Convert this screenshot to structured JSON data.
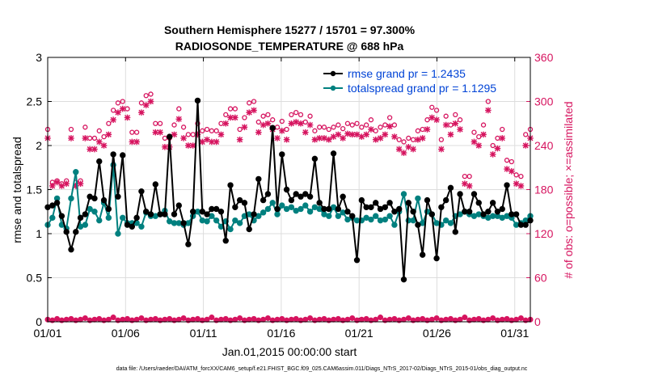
{
  "title_line1": "Southern Hemisphere 15277 / 15701 = 97.300%",
  "title_line2": "RADIOSONDE_TEMPERATURE @ 688 hPa",
  "xlabel": "Jan.01,2015 00:00:00 start",
  "ylabel_left": "rmse and totalspread",
  "ylabel_right": "# of obs: o=possible; ×=assimilated",
  "footer": "data file: /Users/raeder/DAI/ATM_forcXX/CAM6_setup/f.e21.FHIST_BGC.f09_025.CAM6assim.011/Diags_NTrS_2017-02/Diags_NTrS_2015-01/obs_diag_output.nc",
  "colors": {
    "rmse": "#000000",
    "spread": "#00807f",
    "obs": "#d6145f",
    "legend_text": "#0043d6",
    "grid": "#dddddd"
  },
  "chart_data": {
    "type": "line",
    "x_range": [
      1,
      32
    ],
    "x_ticks": [
      1,
      6,
      11,
      16,
      21,
      26,
      31
    ],
    "x_tick_labels": [
      "01/01",
      "01/06",
      "01/11",
      "01/16",
      "01/21",
      "01/26",
      "01/31"
    ],
    "y_left_range": [
      0,
      3
    ],
    "y_left_ticks": [
      "0",
      "0.5",
      "1",
      "1.5",
      "2",
      "2.5",
      "3"
    ],
    "y_right_range": [
      0,
      360
    ],
    "y_right_ticks": [
      "0",
      "60",
      "120",
      "180",
      "240",
      "300",
      "360"
    ],
    "legend": [
      {
        "key": "rmse",
        "label": "rmse grand pr = 1.2435"
      },
      {
        "key": "spread",
        "label": "totalspread grand pr = 1.1295"
      }
    ],
    "series": [
      {
        "name": "rmse",
        "values": [
          1.3,
          1.32,
          1.35,
          1.2,
          1.02,
          0.82,
          1.02,
          1.18,
          1.22,
          1.42,
          1.4,
          1.82,
          1.38,
          1.28,
          1.9,
          1.42,
          1.89,
          1.1,
          1.08,
          1.18,
          1.48,
          1.25,
          1.22,
          1.56,
          1.22,
          1.22,
          2.1,
          1.22,
          1.32,
          1.12,
          0.88,
          1.25,
          2.51,
          1.25,
          1.22,
          1.28,
          1.28,
          1.25,
          0.92,
          1.55,
          1.3,
          1.38,
          1.35,
          1.05,
          1.22,
          1.62,
          1.38,
          1.45,
          2.2,
          1.28,
          1.9,
          1.5,
          1.38,
          1.45,
          1.42,
          1.45,
          1.42,
          1.85,
          1.35,
          1.28,
          1.28,
          1.91,
          1.28,
          1.42,
          1.25,
          1.2,
          0.7,
          1.38,
          1.3,
          1.3,
          1.35,
          1.28,
          1.3,
          1.35,
          1.25,
          1.28,
          0.48,
          1.35,
          1.25,
          1.1,
          0.76,
          1.38,
          1.22,
          0.72,
          1.3,
          1.38,
          1.52,
          1.02,
          1.45,
          1.25,
          1.25,
          1.45,
          1.35,
          1.22,
          1.25,
          1.35,
          1.25,
          1.28,
          1.55,
          1.22,
          1.22,
          1.1,
          1.1,
          1.15
        ],
        "marker": "o"
      },
      {
        "name": "totalspread",
        "values": [
          1.1,
          1.18,
          1.4,
          1.1,
          1.06,
          1.4,
          1.7,
          1.08,
          1.1,
          1.28,
          1.25,
          1.15,
          1.35,
          1.18,
          1.78,
          1.0,
          1.18,
          1.12,
          1.12,
          1.12,
          1.08,
          1.24,
          1.2,
          1.2,
          1.22,
          1.26,
          1.14,
          1.12,
          1.12,
          1.1,
          1.12,
          1.2,
          1.25,
          1.15,
          1.14,
          1.2,
          1.15,
          1.08,
          1.14,
          1.05,
          1.15,
          1.12,
          1.2,
          1.22,
          1.15,
          1.2,
          1.24,
          1.28,
          1.35,
          1.22,
          1.32,
          1.28,
          1.3,
          1.26,
          1.28,
          1.32,
          1.25,
          1.3,
          1.28,
          1.22,
          1.2,
          1.3,
          1.2,
          1.24,
          1.16,
          1.18,
          1.15,
          1.15,
          1.18,
          1.16,
          1.2,
          1.15,
          1.16,
          1.2,
          1.1,
          1.25,
          1.45,
          1.15,
          1.15,
          1.4,
          1.12,
          1.25,
          1.22,
          1.12,
          1.1,
          1.15,
          1.12,
          1.2,
          1.22,
          1.25,
          1.22,
          1.2,
          1.22,
          1.2,
          1.18,
          1.2,
          1.2,
          1.18,
          1.2,
          1.18,
          1.1,
          1.12,
          1.15,
          1.2
        ],
        "marker": "o"
      },
      {
        "name": "obs_possible",
        "values": [
          262,
          190,
          192,
          188,
          192,
          262,
          190,
          192,
          265,
          250,
          250,
          260,
          252,
          270,
          288,
          298,
          300,
          290,
          258,
          258,
          298,
          308,
          310,
          270,
          270,
          250,
          250,
          268,
          290,
          265,
          255,
          255,
          270,
          260,
          262,
          260,
          260,
          270,
          282,
          290,
          290,
          262,
          278,
          298,
          300,
          272,
          280,
          282,
          275,
          265,
          273,
          262,
          282,
          285,
          282,
          272,
          280,
          260,
          265,
          265,
          262,
          265,
          268,
          263,
          270,
          268,
          270,
          265,
          268,
          275,
          260,
          265,
          268,
          278,
          268,
          248,
          245,
          250,
          248,
          260,
          262,
          275,
          292,
          288,
          248,
          280,
          268,
          282,
          275,
          198,
          198,
          258,
          252,
          268,
          300,
          240,
          250,
          262,
          220,
          218,
          200,
          198,
          255,
          262
        ],
        "marker": "o"
      },
      {
        "name": "obs_assimilated",
        "values": [
          250,
          185,
          190,
          185,
          188,
          250,
          185,
          188,
          250,
          235,
          235,
          245,
          240,
          255,
          275,
          285,
          290,
          278,
          245,
          245,
          285,
          295,
          300,
          258,
          258,
          238,
          238,
          255,
          276,
          250,
          240,
          240,
          255,
          245,
          248,
          245,
          245,
          255,
          270,
          278,
          278,
          248,
          265,
          285,
          288,
          258,
          268,
          270,
          262,
          250,
          260,
          248,
          270,
          272,
          270,
          258,
          268,
          248,
          250,
          250,
          248,
          252,
          255,
          250,
          256,
          255,
          255,
          252,
          255,
          262,
          248,
          250,
          255,
          266,
          252,
          235,
          230,
          238,
          235,
          248,
          250,
          262,
          278,
          275,
          235,
          268,
          255,
          270,
          262,
          188,
          185,
          245,
          240,
          255,
          288,
          228,
          236,
          250,
          208,
          205,
          188,
          185,
          240,
          250
        ],
        "marker": "x"
      },
      {
        "name": "obs_near_zero",
        "values": [
          3,
          2,
          4,
          2,
          3,
          4,
          2,
          3,
          5,
          2,
          3,
          4,
          2,
          3,
          6,
          2,
          3,
          4,
          2,
          3,
          5,
          2,
          3,
          4,
          2,
          3,
          4,
          2,
          3,
          5,
          2,
          3,
          4,
          2,
          3,
          6,
          2,
          3,
          4,
          2,
          3,
          5,
          2,
          3,
          4,
          2,
          3,
          5,
          2,
          3,
          4,
          2,
          3,
          4,
          2,
          3,
          5,
          2,
          3,
          4,
          2,
          3,
          4,
          2,
          3,
          5,
          2,
          3,
          4,
          2,
          3,
          6,
          2,
          3,
          4,
          2,
          3,
          5,
          2,
          3,
          4,
          2,
          3,
          5,
          2,
          3,
          4,
          2,
          3,
          6,
          2,
          3,
          4,
          2,
          3,
          5,
          2,
          3,
          4,
          2,
          3,
          5,
          2,
          3
        ],
        "marker": "o"
      }
    ]
  }
}
